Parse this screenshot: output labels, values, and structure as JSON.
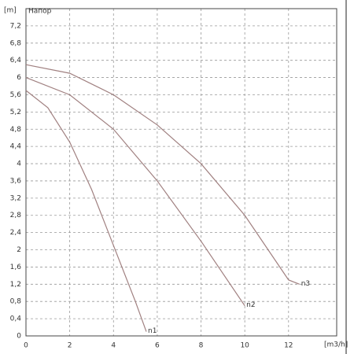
{
  "chart_data": {
    "type": "line",
    "title": "Напор",
    "y_label": "[m]",
    "x_label": "[m3/h]",
    "xlim": [
      0,
      14.2
    ],
    "ylim": [
      0,
      7.6
    ],
    "xticks": [
      0,
      2,
      4,
      6,
      8,
      10,
      12
    ],
    "yticks": [
      0,
      {
        "value": 0.4,
        "label": "0,4"
      },
      {
        "value": 0.8,
        "label": "0,8"
      },
      {
        "value": 1.2,
        "label": "1,2"
      },
      {
        "value": 1.6,
        "label": "1,6"
      },
      2,
      {
        "value": 2.4,
        "label": "2,4"
      },
      {
        "value": 2.8,
        "label": "2,8"
      },
      {
        "value": 3.2,
        "label": "3,2"
      },
      {
        "value": 3.6,
        "label": "3,6"
      },
      4,
      {
        "value": 4.4,
        "label": "4,4"
      },
      {
        "value": 4.8,
        "label": "4,8"
      },
      {
        "value": 5.2,
        "label": "5,2"
      },
      {
        "value": 5.6,
        "label": "5,6"
      },
      6,
      {
        "value": 6.4,
        "label": "6,4"
      },
      {
        "value": 6.8,
        "label": "6,8"
      },
      {
        "value": 7.2,
        "label": "7,2"
      }
    ],
    "grid": true,
    "series": [
      {
        "name": "n1",
        "color": "#a08080",
        "x": [
          0,
          1,
          2,
          3,
          4,
          5,
          5.5
        ],
        "values": [
          5.7,
          5.3,
          4.5,
          3.4,
          2.1,
          0.8,
          0.1
        ]
      },
      {
        "name": "n2",
        "color": "#a08080",
        "x": [
          0,
          2,
          4,
          6,
          8,
          10
        ],
        "values": [
          6.0,
          5.6,
          4.8,
          3.6,
          2.2,
          0.7
        ]
      },
      {
        "name": "n3",
        "color": "#a08080",
        "x": [
          0,
          2,
          4,
          6,
          8,
          10,
          12,
          12.5
        ],
        "values": [
          6.3,
          6.1,
          5.6,
          4.9,
          4.0,
          2.8,
          1.3,
          1.2
        ]
      }
    ]
  }
}
